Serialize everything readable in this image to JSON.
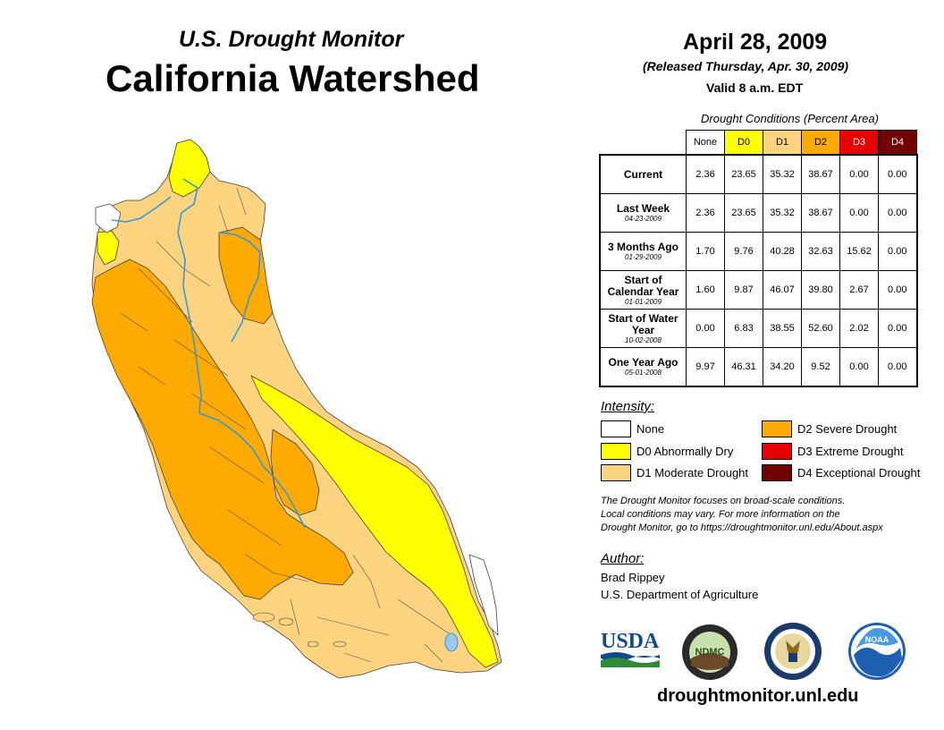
{
  "header": {
    "subtitle": "U.S. Drought Monitor",
    "title": "California Watershed",
    "date": "April 28, 2009",
    "released": "(Released Thursday, Apr. 30, 2009)",
    "valid": "Valid 8 a.m. EDT"
  },
  "table": {
    "caption": "Drought Conditions (Percent Area)",
    "columns": [
      "None",
      "D0",
      "D1",
      "D2",
      "D3",
      "D4"
    ],
    "column_colors": [
      "#ffffff",
      "#ffff00",
      "#fcd37f",
      "#ffaa00",
      "#e60000",
      "#730000"
    ],
    "column_text_colors": [
      "#000000",
      "#000000",
      "#000000",
      "#000000",
      "#ffffff",
      "#ffffff"
    ],
    "rows": [
      {
        "label": "Current",
        "date": "",
        "values": [
          "2.36",
          "23.65",
          "35.32",
          "38.67",
          "0.00",
          "0.00"
        ]
      },
      {
        "label": "Last Week",
        "date": "04-23-2009",
        "values": [
          "2.36",
          "23.65",
          "35.32",
          "38.67",
          "0.00",
          "0.00"
        ]
      },
      {
        "label": "3 Months Ago",
        "date": "01-29-2009",
        "values": [
          "1.70",
          "9.76",
          "40.28",
          "32.63",
          "15.62",
          "0.00"
        ]
      },
      {
        "label": "Start of Calendar Year",
        "date": "01-01-2009",
        "values": [
          "1.60",
          "9.87",
          "46.07",
          "39.80",
          "2.67",
          "0.00"
        ]
      },
      {
        "label": "Start of Water Year",
        "date": "10-02-2008",
        "values": [
          "0.00",
          "6.83",
          "38.55",
          "52.60",
          "2.02",
          "0.00"
        ]
      },
      {
        "label": "One Year Ago",
        "date": "05-01-2008",
        "values": [
          "9.97",
          "46.31",
          "34.20",
          "9.52",
          "0.00",
          "0.00"
        ]
      }
    ]
  },
  "legend": {
    "title": "Intensity:",
    "items": [
      {
        "label": "None",
        "color": "#ffffff"
      },
      {
        "label": "D0 Abnormally Dry",
        "color": "#ffff00"
      },
      {
        "label": "D1 Moderate Drought",
        "color": "#fcd37f"
      },
      {
        "label": "D2 Severe Drought",
        "color": "#ffaa00"
      },
      {
        "label": "D3 Extreme Drought",
        "color": "#e60000"
      },
      {
        "label": "D4 Exceptional Drought",
        "color": "#730000"
      }
    ]
  },
  "note": {
    "line1": "The Drought Monitor focuses on broad-scale conditions.",
    "line2": "Local conditions may vary. For more information on the",
    "line3": "Drought Monitor, go to https://droughtmonitor.unl.edu/About.aspx"
  },
  "author": {
    "title": "Author:",
    "name": "Brad Rippey",
    "org": "U.S. Department of Agriculture"
  },
  "logos": {
    "usda": "USDA",
    "ndmc": "NDMC",
    "noaa": "NOAA"
  },
  "footer": {
    "website": "droughtmonitor.unl.edu"
  },
  "colors": {
    "river": "#3399dd",
    "boundary": "#333333"
  }
}
